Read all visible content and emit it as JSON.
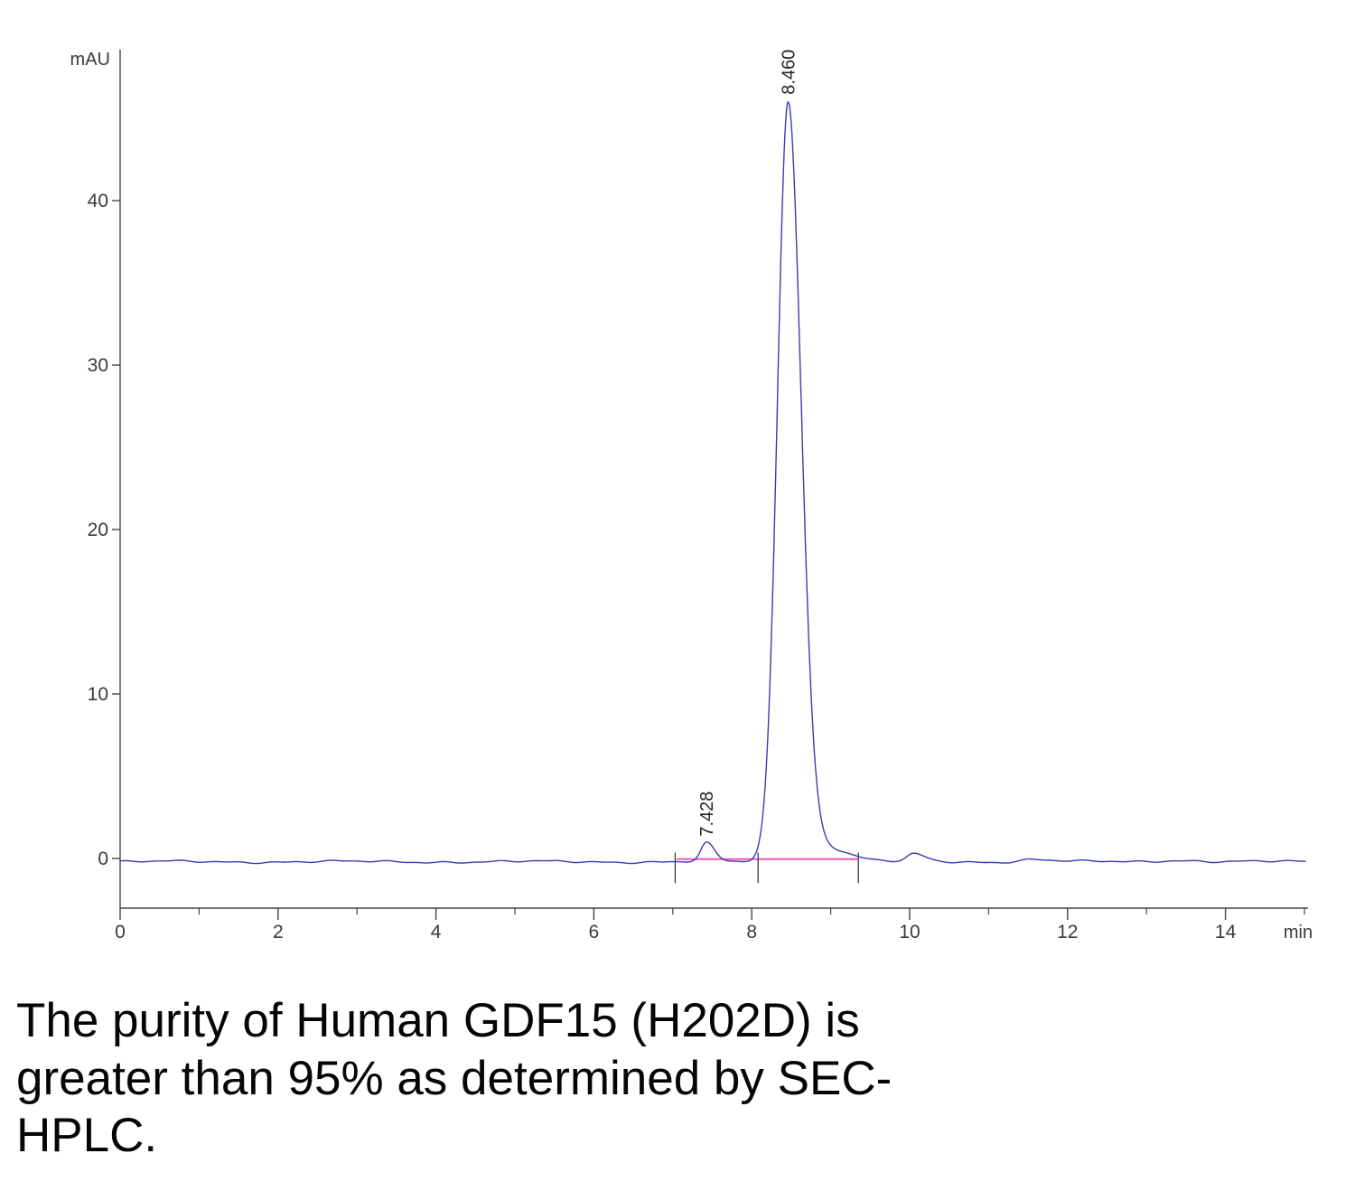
{
  "chart_data": {
    "type": "line",
    "xlabel": "min",
    "ylabel": "mAU",
    "xlim": [
      0,
      15
    ],
    "ylim": [
      -3,
      48
    ],
    "x_ticks": [
      0,
      2,
      4,
      6,
      8,
      10,
      12,
      14
    ],
    "x_minor_ticks": [
      1,
      3,
      5,
      7,
      9,
      11,
      13,
      15
    ],
    "y_ticks": [
      0,
      10,
      20,
      30,
      40
    ],
    "trace_color": "#3b3bb0",
    "integration_baseline_color": "#ea5bb8",
    "axis_color": "#444444",
    "label_color": "#3a3a3a",
    "baseline_mAU": -0.2,
    "peaks": [
      {
        "label": "7.428",
        "retention_min": 7.428,
        "height_mAU": 1.1,
        "sigma_left": 0.07,
        "sigma_right": 0.1
      },
      {
        "label": "8.460",
        "retention_min": 8.46,
        "height_mAU": 46.2,
        "sigma_left": 0.135,
        "sigma_right": 0.165
      }
    ],
    "minor_features": [
      {
        "retention_min": 8.95,
        "height_mAU": 0.85,
        "sigma_left": 0.22,
        "sigma_right": 0.28
      },
      {
        "retention_min": 10.05,
        "height_mAU": 0.45,
        "sigma_left": 0.08,
        "sigma_right": 0.14
      },
      {
        "retention_min": 11.55,
        "height_mAU": 0.14,
        "sigma_left": 0.15,
        "sigma_right": 0.22
      },
      {
        "retention_min": 13.4,
        "height_mAU": 0.1,
        "sigma_left": 0.25,
        "sigma_right": 0.25
      }
    ],
    "integration": {
      "start_min": 7.05,
      "end_min": 9.35,
      "level_mAU": -0.04,
      "marks_min": [
        7.03,
        8.08,
        9.35
      ]
    }
  },
  "caption": {
    "lines": [
      "The purity of Human GDF15 (H202D) is",
      "greater than 95% as determined by SEC-",
      "HPLC."
    ]
  }
}
